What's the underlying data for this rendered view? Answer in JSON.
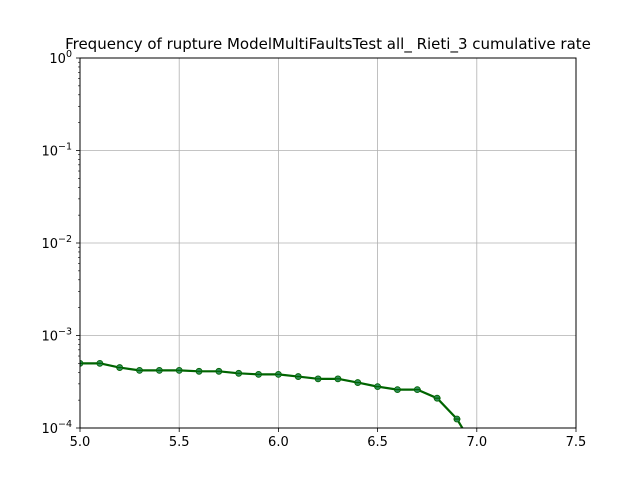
{
  "chart_data": {
    "type": "line",
    "title": "Frequency of rupture ModelMultiFaultsTest all_ Rieti_3 cumulative rate",
    "xlabel": "",
    "ylabel": "",
    "xlim": [
      5.0,
      7.5
    ],
    "ylim": [
      0.0001,
      1
    ],
    "yscale": "log",
    "grid": true,
    "x_ticks": [
      "5.0",
      "5.5",
      "6.0",
      "6.5",
      "7.0",
      "7.5"
    ],
    "y_ticks": [
      {
        "base": "10",
        "exp": "0"
      },
      {
        "base": "10",
        "exp": "−1"
      },
      {
        "base": "10",
        "exp": "−2"
      },
      {
        "base": "10",
        "exp": "−3"
      },
      {
        "base": "10",
        "exp": "−4"
      }
    ],
    "series": [
      {
        "color": "#006400",
        "marker_color": "#2e8b57",
        "x": [
          5.0,
          5.1,
          5.2,
          5.3,
          5.4,
          5.5,
          5.6,
          5.7,
          5.8,
          5.9,
          6.0,
          6.1,
          6.2,
          6.3,
          6.4,
          6.5,
          6.6,
          6.7,
          6.8,
          6.9,
          7.0
        ],
        "y": [
          0.0005,
          0.0005,
          0.00045,
          0.00042,
          0.00042,
          0.00042,
          0.00041,
          0.00041,
          0.00039,
          0.00038,
          0.00038,
          0.00036,
          0.00034,
          0.00034,
          0.00031,
          0.00028,
          0.00026,
          0.00026,
          0.00021,
          0.000125,
          5.5e-05
        ]
      }
    ]
  }
}
